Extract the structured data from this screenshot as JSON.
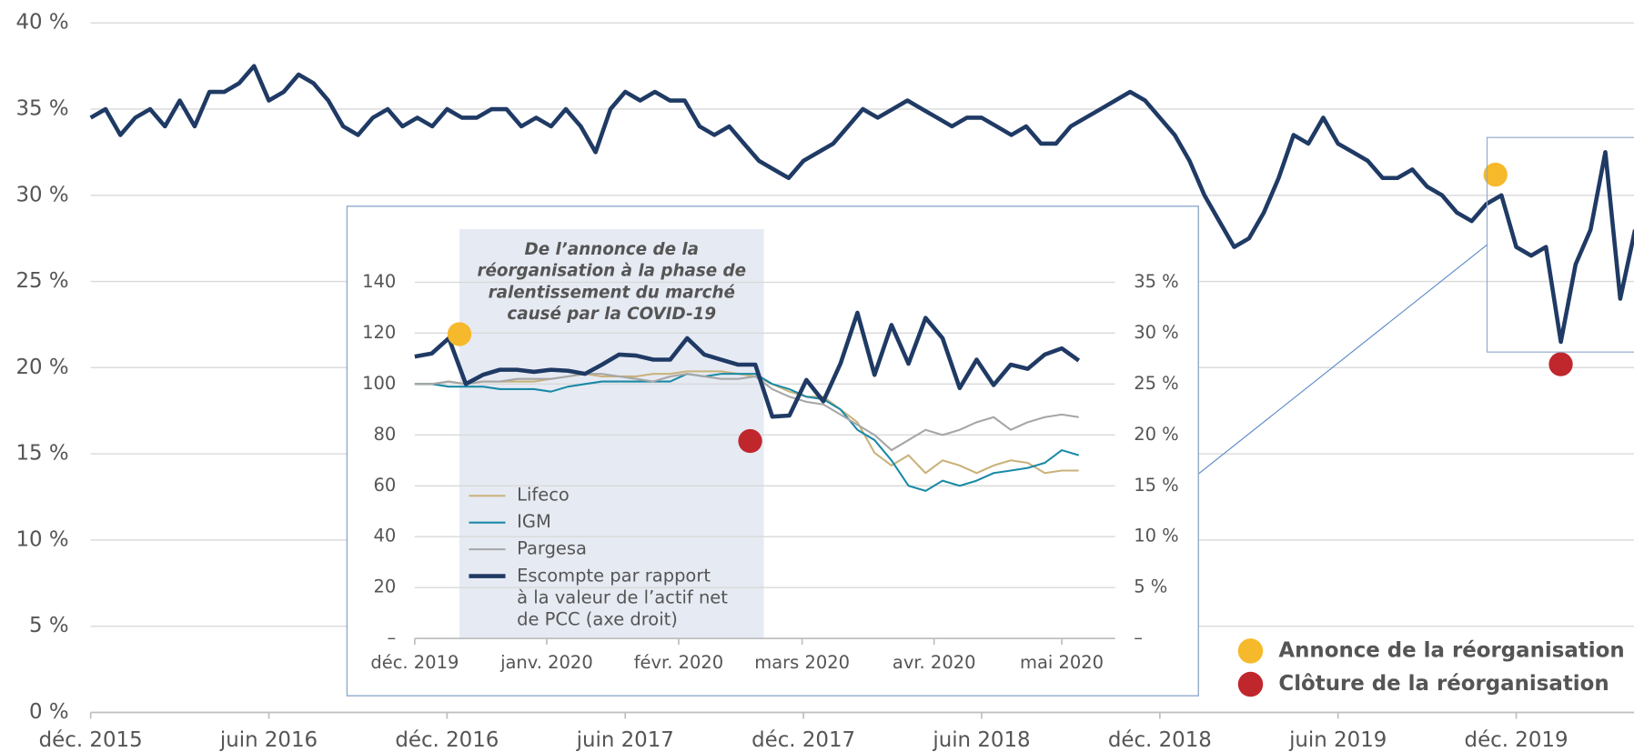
{
  "chart_data": [
    {
      "type": "line",
      "xlim": [
        0,
        52
      ],
      "xticks": [
        {
          "value": 0,
          "label": "déc. 2015"
        },
        {
          "value": 6,
          "label": "juin 2016"
        },
        {
          "value": 12,
          "label": "déc. 2016"
        },
        {
          "value": 18,
          "label": "juin 2017"
        },
        {
          "value": 24,
          "label": "déc. 2017"
        },
        {
          "value": 30,
          "label": "juin 2018"
        },
        {
          "value": 36,
          "label": "déc. 2018"
        },
        {
          "value": 42,
          "label": "juin 2019"
        },
        {
          "value": 48,
          "label": "déc. 2019"
        }
      ],
      "ylim": [
        0,
        40
      ],
      "yticks": [
        {
          "value": 0,
          "label": "0 %"
        },
        {
          "value": 5,
          "label": "5 %"
        },
        {
          "value": 10,
          "label": "10 %"
        },
        {
          "value": 15,
          "label": "15 %"
        },
        {
          "value": 20,
          "label": "20 %"
        },
        {
          "value": 25,
          "label": "25 %"
        },
        {
          "value": 30,
          "label": "30 %"
        },
        {
          "value": 35,
          "label": "35 %"
        },
        {
          "value": 40,
          "label": "40 %"
        }
      ],
      "grid": true,
      "x": [
        0,
        0.5,
        1,
        1.5,
        2,
        2.5,
        3,
        3.5,
        4,
        4.5,
        5,
        5.5,
        6,
        6.5,
        7,
        7.5,
        8,
        8.5,
        9,
        9.5,
        10,
        10.5,
        11,
        11.5,
        12,
        12.5,
        13,
        13.5,
        14,
        14.5,
        15,
        15.5,
        16,
        16.5,
        17,
        17.5,
        18,
        18.5,
        19,
        19.5,
        20,
        20.5,
        21,
        21.5,
        22,
        22.5,
        23,
        23.5,
        24,
        24.5,
        25,
        25.5,
        26,
        26.5,
        27,
        27.5,
        28,
        28.5,
        29,
        29.5,
        30,
        30.5,
        31,
        31.5,
        32,
        32.5,
        33,
        33.5,
        34,
        34.5,
        35,
        35.5,
        36,
        36.5,
        37,
        37.5,
        38,
        38.5,
        39,
        39.5,
        40,
        40.5,
        41,
        41.5,
        42,
        42.5,
        43,
        43.5,
        44,
        44.5,
        45,
        45.5,
        46,
        46.5,
        47,
        47.5,
        48,
        48.5,
        49,
        49.5,
        50,
        50.5,
        51,
        51.5,
        52
      ],
      "series": [
        {
          "color": "#1f3a64",
          "values": [
            34.5,
            35,
            33.5,
            34.5,
            35,
            34,
            35.5,
            34,
            36,
            36,
            36.5,
            37.5,
            35.5,
            36,
            37,
            36.5,
            35.5,
            34,
            33.5,
            34.5,
            35,
            34,
            34.5,
            34,
            35,
            34.5,
            34.5,
            35,
            35,
            34,
            34.5,
            34,
            35,
            34,
            32.5,
            35,
            36,
            35.5,
            36,
            35.5,
            35.5,
            34,
            33.5,
            34,
            33,
            32,
            31.5,
            31,
            32,
            32.5,
            33,
            34,
            35,
            34.5,
            35,
            35.5,
            35,
            34.5,
            34,
            34.5,
            34.5,
            34,
            33.5,
            34,
            33,
            33,
            34,
            34.5,
            35,
            35.5,
            36,
            35.5,
            34.5,
            33.5,
            32,
            30,
            28.5,
            27,
            27.5,
            29,
            31,
            33.5,
            33,
            34.5,
            33,
            32.5,
            32,
            31,
            31,
            31.5,
            30.5,
            30,
            29,
            28.5,
            29.5,
            30,
            27,
            26.5,
            27,
            21.5,
            26,
            28,
            32.5,
            24,
            28
          ]
        }
      ],
      "markers": [
        {
          "name": "Annonce de la réorganisation",
          "color": "#f6b92b",
          "x": 47.3,
          "value": 31.2
        },
        {
          "name": "Clôture de la réorganisation",
          "color": "#c0272d",
          "x": 49.5,
          "value": 20.2
        }
      ]
    },
    {
      "type": "line",
      "xlim": [
        0,
        165
      ],
      "xticks": [
        {
          "value": 0,
          "label": "déc. 2019"
        },
        {
          "value": 31,
          "label": "janv. 2020"
        },
        {
          "value": 62,
          "label": "févr. 2020"
        },
        {
          "value": 91,
          "label": "mars 2020"
        },
        {
          "value": 122,
          "label": "avr. 2020"
        },
        {
          "value": 152,
          "label": "mai 2020"
        }
      ],
      "ylim": [
        0,
        140
      ],
      "yticks": [
        {
          "value": 0,
          "label": "–"
        },
        20,
        40,
        60,
        80,
        100,
        120,
        140
      ],
      "y2lim": [
        0,
        35
      ],
      "y2ticks": [
        {
          "value": 0,
          "label": "–"
        },
        {
          "value": 5,
          "label": "5 %"
        },
        {
          "value": 10,
          "label": "10 %"
        },
        {
          "value": 15,
          "label": "15 %"
        },
        {
          "value": 20,
          "label": "20 %"
        },
        {
          "value": 25,
          "label": "25 %"
        },
        {
          "value": 30,
          "label": "30 %"
        },
        {
          "value": 35,
          "label": "35 %"
        }
      ],
      "grid": true,
      "annotation": {
        "x": [
          10.5,
          82
        ],
        "lines": [
          "De l’annonce de la",
          "réorganisation à la phase de",
          "ralentissement du marché",
          "causé par la COVID-19"
        ]
      },
      "x": [
        0,
        4,
        8,
        12,
        16,
        20,
        24,
        28,
        32,
        36,
        40,
        44,
        48,
        52,
        56,
        60,
        64,
        68,
        72,
        76,
        80,
        84,
        88,
        92,
        96,
        100,
        104,
        108,
        112,
        116,
        120,
        124,
        128,
        132,
        136,
        140,
        144,
        148,
        152,
        156
      ],
      "series": [
        {
          "name": "Lifeco",
          "color": "#c9b27a",
          "values": [
            100,
            100,
            101,
            100,
            101,
            101,
            101,
            101,
            102,
            103,
            104,
            103,
            103,
            103,
            104,
            104,
            105,
            105,
            105,
            104,
            103,
            100,
            97,
            95,
            95,
            90,
            85,
            73,
            68,
            72,
            65,
            70,
            68,
            65,
            68,
            70,
            69,
            65,
            66,
            66
          ]
        },
        {
          "name": "IGM",
          "color": "#1a8aa6",
          "values": [
            100,
            100,
            99,
            99,
            99,
            98,
            98,
            98,
            97,
            99,
            100,
            101,
            101,
            101,
            101,
            101,
            104,
            103,
            104,
            104,
            104,
            100,
            98,
            95,
            94,
            90,
            82,
            78,
            70,
            60,
            58,
            62,
            60,
            62,
            65,
            66,
            67,
            69,
            74,
            72
          ]
        },
        {
          "name": "Pargesa",
          "color": "#a6a6a6",
          "values": [
            100,
            100,
            101,
            100,
            101,
            101,
            102,
            102,
            102,
            103,
            104,
            104,
            103,
            102,
            101,
            103,
            104,
            103,
            102,
            102,
            103,
            98,
            95,
            93,
            92,
            88,
            84,
            80,
            74,
            78,
            82,
            80,
            82,
            85,
            87,
            82,
            85,
            87,
            88,
            87
          ]
        },
        {
          "name": "Escompte par rapport\nà la valeur de l’actif net\nde PCC (axe droit)",
          "color": "#1f3a64",
          "axis": "y2",
          "values": [
            27.7,
            28,
            29.5,
            25,
            25.9,
            26.4,
            26.4,
            26.2,
            26.4,
            26.3,
            26,
            26.9,
            27.9,
            27.8,
            27.4,
            27.4,
            29.5,
            27.9,
            27.4,
            26.9,
            26.9,
            21.8,
            21.9,
            25.4,
            23.3,
            27,
            32,
            25.9,
            30.8,
            27,
            31.5,
            29.5,
            24.6,
            27.4,
            24.9,
            26.9,
            26.5,
            27.9,
            28.5,
            27.3
          ]
        }
      ],
      "markers": [
        {
          "color": "#f6b92b",
          "x": 10.5,
          "value": 29.9,
          "axis": "y2"
        },
        {
          "color": "#c0272d",
          "x": 78.8,
          "value": 19.4,
          "axis": "y2"
        }
      ]
    }
  ]
}
